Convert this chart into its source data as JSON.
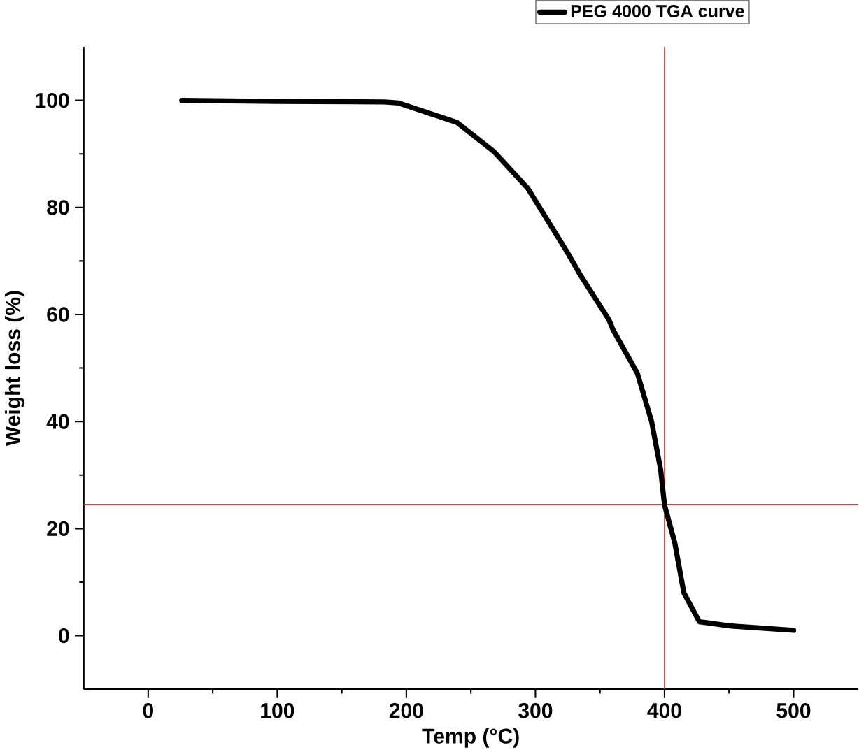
{
  "chart_data": {
    "type": "line",
    "xlabel": "Temp (°C)",
    "ylabel": "Weight loss (%)",
    "x": [
      26,
      100,
      183,
      194,
      239,
      268,
      294,
      324,
      335,
      357,
      360,
      379,
      390,
      397,
      400,
      408,
      415,
      427,
      452,
      500
    ],
    "series": [
      {
        "name": "PEG 4000 TGA curve",
        "color": "#000000",
        "values": [
          100,
          99.8,
          99.7,
          99.5,
          95.9,
          90.4,
          83.6,
          71.9,
          67.3,
          59,
          57.2,
          49,
          40,
          31,
          24.4,
          17.3,
          8,
          2.6,
          1.8,
          1.0
        ]
      }
    ],
    "xlim": [
      -50,
      550
    ],
    "ylim": [
      -10,
      110
    ],
    "xticks": [
      0,
      100,
      200,
      300,
      400,
      500
    ],
    "yticks": [
      0,
      20,
      40,
      60,
      80,
      100
    ],
    "ref_lines": [
      {
        "axis": "x",
        "value": 400,
        "color": "#ee3333"
      },
      {
        "axis": "y",
        "value": 24.5,
        "color": "#ee3333"
      }
    ],
    "grid": false,
    "legend": "top right",
    "marker": "none",
    "line_style": "solid"
  }
}
